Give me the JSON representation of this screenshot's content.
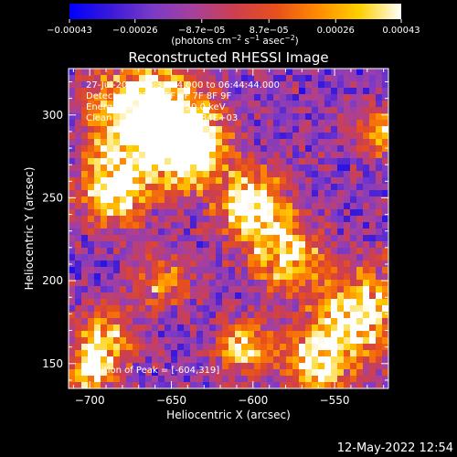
{
  "chart_data": {
    "type": "heatmap",
    "title": "Reconstructed RHESSI Image",
    "xlabel": "Heliocentric X (arcsec)",
    "ylabel": "Heliocentric Y (arcsec)",
    "xlim": [
      -713,
      -517
    ],
    "ylim": [
      135,
      328
    ],
    "x_ticks": [
      -700,
      -650,
      -600,
      -550
    ],
    "x_tick_labels": [
      "−700",
      "−650",
      "−600",
      "−550"
    ],
    "y_ticks": [
      150,
      200,
      250,
      300
    ],
    "y_tick_labels": [
      "150",
      "200",
      "250",
      "300"
    ],
    "colorbar": {
      "ticks": [
        -0.00043,
        -0.00026,
        -8.7e-05,
        8.7e-05,
        0.00026,
        0.00043
      ],
      "tick_labels": [
        "−0.00043",
        "−0.00026",
        "−8.7e−05",
        "8.7e−05",
        "0.00026",
        "0.00043"
      ],
      "unit_label": "(photons cm",
      "unit_exp1": "−2",
      "unit_mid": " s",
      "unit_exp2": "−1",
      "unit_mid2": " asec",
      "unit_exp3": "−2",
      "unit_end": ")",
      "colors": [
        "#0000ff",
        "#3a1ad8",
        "#7a3ac8",
        "#a8409a",
        "#ce3f4e",
        "#e8501a",
        "#ff8c00",
        "#ffd000",
        "#ffffff"
      ]
    },
    "annotations": {
      "time_range": "27-Jul-2011 06:38:44.000 to 06:44:44.000",
      "detectors": "Detectors: 3F 4F 5F 6F 7F 8F 9F",
      "energy_range": "Energy Range: 25.0 - 50.0 keV",
      "clean_label": "Clean",
      "total_counts": "Total counts: 7.84E+03",
      "peak_position": "Position of Peak = [-604,319]"
    },
    "bright_regions": [
      {
        "x": -665,
        "y": 300,
        "strength": 1.0,
        "spread": 22
      },
      {
        "x": -685,
        "y": 255,
        "strength": 0.8,
        "spread": 14
      },
      {
        "x": -640,
        "y": 280,
        "strength": 0.85,
        "spread": 16
      },
      {
        "x": -600,
        "y": 245,
        "strength": 0.85,
        "spread": 14
      },
      {
        "x": -580,
        "y": 215,
        "strength": 0.7,
        "spread": 14
      },
      {
        "x": -535,
        "y": 180,
        "strength": 0.8,
        "spread": 18
      },
      {
        "x": -560,
        "y": 150,
        "strength": 0.7,
        "spread": 14
      },
      {
        "x": -605,
        "y": 160,
        "strength": 0.55,
        "spread": 12
      },
      {
        "x": -690,
        "y": 165,
        "strength": 0.6,
        "spread": 12
      },
      {
        "x": -700,
        "y": 145,
        "strength": 0.65,
        "spread": 10
      },
      {
        "x": -520,
        "y": 290,
        "strength": 0.55,
        "spread": 10
      },
      {
        "x": -655,
        "y": 200,
        "strength": 0.4,
        "spread": 12
      }
    ]
  },
  "footer": {
    "timestamp": "12-May-2022 12:54"
  }
}
